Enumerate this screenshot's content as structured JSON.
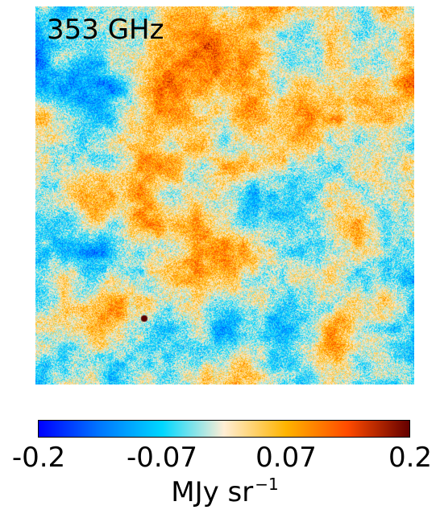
{
  "map": {
    "band_label": "353 GHz",
    "icon": "temperature-anisotropy-map"
  },
  "colorbar": {
    "ticks": [
      "-0.2",
      "-0.07",
      "0.07",
      "0.2"
    ],
    "range": [
      -0.2,
      0.2
    ],
    "unit_base": "MJy sr",
    "unit_exponent": "−1",
    "stops": [
      "#0000ff",
      "#0078ff",
      "#00d7ff",
      "#ffeed5",
      "#ffb400",
      "#ff4b00",
      "#640000"
    ]
  }
}
